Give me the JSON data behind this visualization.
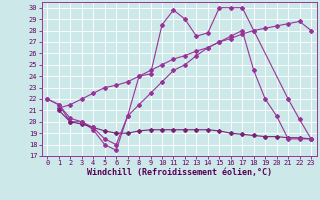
{
  "xlabel": "Windchill (Refroidissement éolien,°C)",
  "ylabel": "",
  "xlim": [
    -0.5,
    23.5
  ],
  "ylim": [
    17,
    30.5
  ],
  "yticks": [
    17,
    18,
    19,
    20,
    21,
    22,
    23,
    24,
    25,
    26,
    27,
    28,
    29,
    30
  ],
  "xticks": [
    0,
    1,
    2,
    3,
    4,
    5,
    6,
    7,
    8,
    9,
    10,
    11,
    12,
    13,
    14,
    15,
    16,
    17,
    18,
    19,
    20,
    21,
    22,
    23
  ],
  "bg_color": "#cce8e8",
  "line_color": "#993399",
  "grid_color": "#bbdddd",
  "line1_x": [
    0,
    1,
    2,
    3,
    4,
    5,
    6,
    7,
    8,
    9,
    10,
    11,
    12,
    13,
    14,
    15,
    16,
    17,
    18,
    21,
    22,
    23
  ],
  "line1_y": [
    22.0,
    21.5,
    20.0,
    20.0,
    19.3,
    18.0,
    17.5,
    20.5,
    24.0,
    24.2,
    28.5,
    29.8,
    29.0,
    27.5,
    27.8,
    30.0,
    30.0,
    30.0,
    28.0,
    22.0,
    20.2,
    18.5
  ],
  "line2_x": [
    1,
    2,
    3,
    4,
    5,
    6,
    7,
    8,
    9,
    10,
    11,
    12,
    13,
    14,
    15,
    16,
    17,
    18,
    19,
    20,
    21,
    22,
    23
  ],
  "line2_y": [
    21.2,
    21.5,
    22.0,
    22.5,
    23.0,
    23.2,
    23.5,
    24.0,
    24.5,
    25.0,
    25.5,
    25.8,
    26.2,
    26.5,
    27.0,
    27.3,
    27.7,
    28.0,
    28.2,
    28.4,
    28.6,
    28.8,
    28.0
  ],
  "line3_x": [
    1,
    2,
    3,
    4,
    5,
    6,
    7,
    8,
    9,
    10,
    11,
    12,
    13,
    14,
    15,
    16,
    17,
    18,
    19,
    20,
    21,
    22,
    23
  ],
  "line3_y": [
    21.0,
    20.0,
    19.8,
    19.5,
    19.2,
    19.0,
    19.0,
    19.2,
    19.3,
    19.3,
    19.3,
    19.3,
    19.3,
    19.3,
    19.2,
    19.0,
    18.9,
    18.8,
    18.7,
    18.7,
    18.6,
    18.6,
    18.5
  ],
  "line4_x": [
    0,
    1,
    2,
    3,
    4,
    5,
    6,
    7,
    8,
    9,
    10,
    11,
    12,
    13,
    14,
    15,
    16,
    17,
    18,
    19,
    20,
    21,
    22,
    23
  ],
  "line4_y": [
    22.0,
    21.5,
    20.3,
    20.0,
    19.5,
    18.5,
    18.0,
    20.5,
    21.5,
    22.5,
    23.5,
    24.5,
    25.0,
    25.8,
    26.5,
    27.0,
    27.5,
    28.0,
    24.5,
    22.0,
    20.5,
    18.5,
    18.5,
    18.5
  ],
  "tick_fontsize": 5,
  "xlabel_fontsize": 6
}
